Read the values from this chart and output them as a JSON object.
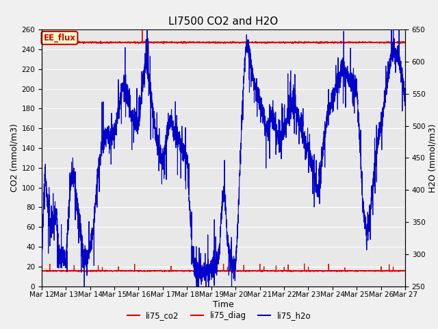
{
  "title": "LI7500 CO2 and H2O",
  "xlabel": "Time",
  "ylabel_left": "CO2 (mmol/m3)",
  "ylabel_right": "H2O (mmol/m3)",
  "ylim_left": [
    0,
    260
  ],
  "ylim_right": [
    250,
    650
  ],
  "yticks_left": [
    0,
    20,
    40,
    60,
    80,
    100,
    120,
    140,
    160,
    180,
    200,
    220,
    240,
    260
  ],
  "yticks_right": [
    250,
    300,
    350,
    400,
    450,
    500,
    550,
    600,
    650
  ],
  "xtick_labels": [
    "Mar 12",
    "Mar 13",
    "Mar 14",
    "Mar 15",
    "Mar 16",
    "Mar 17",
    "Mar 18",
    "Mar 19",
    "Mar 20",
    "Mar 21",
    "Mar 22",
    "Mar 23",
    "Mar 24",
    "Mar 25",
    "Mar 26",
    "Mar 27"
  ],
  "fig_bg_color": "#f0f0f0",
  "plot_bg_color": "#e8e8e8",
  "grid_color": "#ffffff",
  "co2_color": "#dd0000",
  "diag_color": "#dd0000",
  "h2o_color": "#0000cc",
  "ee_flux_box_facecolor": "#ffffcc",
  "ee_flux_box_edgecolor": "#cc0000",
  "title_fontsize": 11,
  "axis_label_fontsize": 9,
  "tick_fontsize": 7.5,
  "legend_fontsize": 8.5
}
